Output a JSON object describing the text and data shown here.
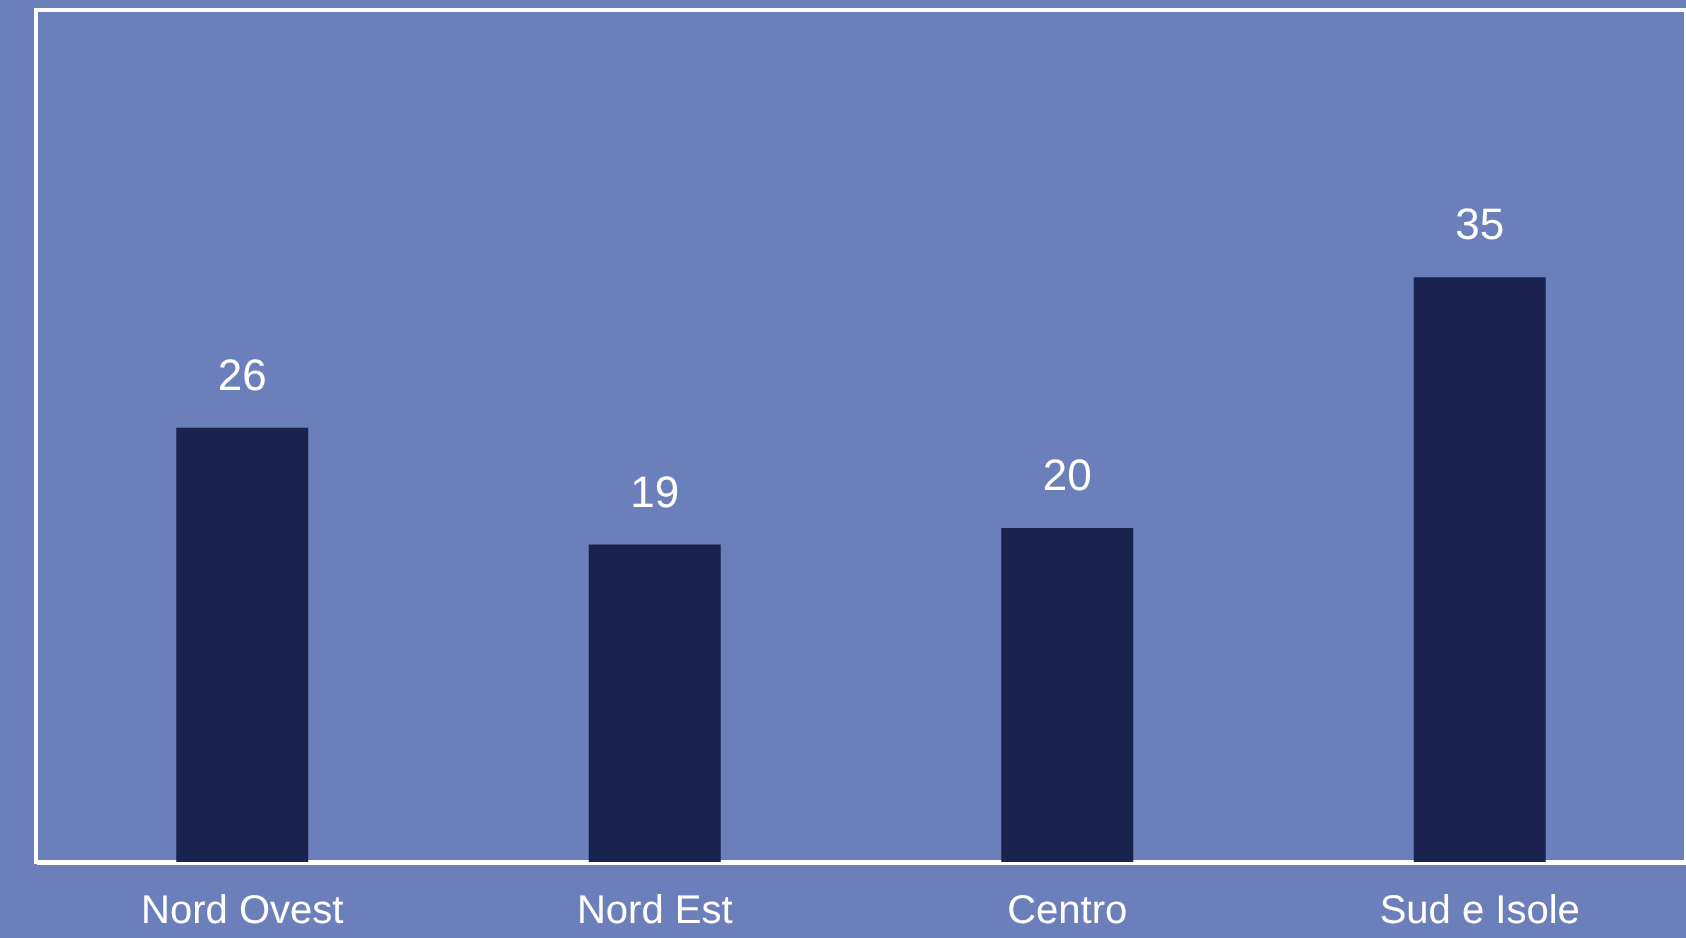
{
  "chart_data": {
    "type": "bar",
    "categories": [
      "Nord Ovest",
      "Nord Est",
      "Centro",
      "Sud e Isole"
    ],
    "values": [
      26,
      19,
      20,
      35
    ],
    "color": "#1a2350",
    "ylim": [
      0,
      51
    ],
    "data_labels": true,
    "tick_labels": "x"
  }
}
